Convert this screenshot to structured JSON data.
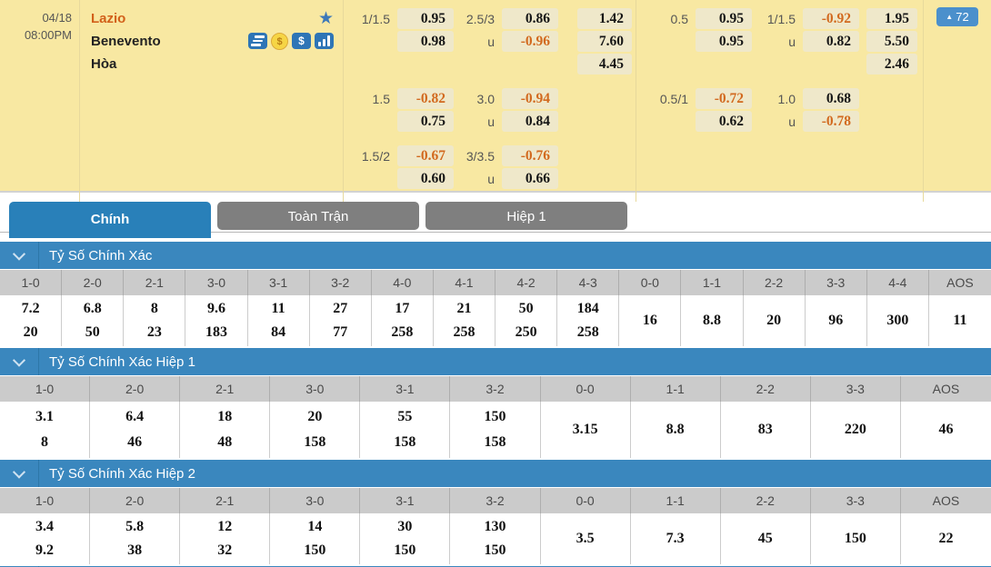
{
  "match": {
    "date": "04/18",
    "time": "08:00PM",
    "home": "Lazio",
    "away": "Benevento",
    "draw_label": "Hòa",
    "icons": [
      "stack-icon",
      "coin-icon",
      "dollar-icon",
      "stats-icon"
    ],
    "badge": {
      "arrow": "▲",
      "value": "72"
    }
  },
  "odds": {
    "left": {
      "blocks": [
        {
          "rows": [
            [
              "1/1.5",
              "0.95",
              "2.5/3",
              "0.86",
              "1.42"
            ],
            [
              "",
              "0.98",
              "u",
              "-0.96",
              "7.60"
            ],
            [
              null,
              null,
              null,
              null,
              "4.45"
            ]
          ]
        },
        {
          "rows": [
            [
              "1.5",
              "-0.82",
              "3.0",
              "-0.94",
              null
            ],
            [
              "",
              "0.75",
              "u",
              "0.84",
              null
            ]
          ]
        },
        {
          "rows": [
            [
              "1.5/2",
              "-0.67",
              "3/3.5",
              "-0.76",
              null
            ],
            [
              "",
              "0.60",
              "u",
              "0.66",
              null
            ]
          ]
        }
      ]
    },
    "right": {
      "blocks": [
        {
          "rows": [
            [
              "0.5",
              "0.95",
              "1/1.5",
              "-0.92",
              "1.95"
            ],
            [
              "",
              "0.95",
              "u",
              "0.82",
              "5.50"
            ],
            [
              null,
              null,
              null,
              null,
              "2.46"
            ]
          ]
        },
        {
          "rows": [
            [
              "0.5/1",
              "-0.72",
              "1.0",
              "0.68",
              null
            ],
            [
              "",
              "0.62",
              "u",
              "-0.78",
              null
            ]
          ]
        }
      ]
    }
  },
  "tabs": [
    {
      "label": "Chính",
      "active": true
    },
    {
      "label": "Toàn Trận",
      "active": false
    },
    {
      "label": "Hiệp 1",
      "active": false
    }
  ],
  "score_sections": [
    {
      "title": "Tỷ Số Chính Xác",
      "cells": [
        {
          "score": "1-0",
          "values": [
            "7.2",
            "20"
          ]
        },
        {
          "score": "2-0",
          "values": [
            "6.8",
            "50"
          ]
        },
        {
          "score": "2-1",
          "values": [
            "8",
            "23"
          ]
        },
        {
          "score": "3-0",
          "values": [
            "9.6",
            "183"
          ]
        },
        {
          "score": "3-1",
          "values": [
            "11",
            "84"
          ]
        },
        {
          "score": "3-2",
          "values": [
            "27",
            "77"
          ]
        },
        {
          "score": "4-0",
          "values": [
            "17",
            "258"
          ]
        },
        {
          "score": "4-1",
          "values": [
            "21",
            "258"
          ]
        },
        {
          "score": "4-2",
          "values": [
            "50",
            "250"
          ]
        },
        {
          "score": "4-3",
          "values": [
            "184",
            "258"
          ]
        },
        {
          "score": "0-0",
          "values": [
            "16"
          ]
        },
        {
          "score": "1-1",
          "values": [
            "8.8"
          ]
        },
        {
          "score": "2-2",
          "values": [
            "20"
          ]
        },
        {
          "score": "3-3",
          "values": [
            "96"
          ]
        },
        {
          "score": "4-4",
          "values": [
            "300"
          ]
        },
        {
          "score": "AOS",
          "values": [
            "11"
          ]
        }
      ]
    },
    {
      "title": "Tỷ Số Chính Xác Hiệp 1",
      "cells": [
        {
          "score": "1-0",
          "values": [
            "3.1",
            "8"
          ]
        },
        {
          "score": "2-0",
          "values": [
            "6.4",
            "46"
          ]
        },
        {
          "score": "2-1",
          "values": [
            "18",
            "48"
          ]
        },
        {
          "score": "3-0",
          "values": [
            "20",
            "158"
          ]
        },
        {
          "score": "3-1",
          "values": [
            "55",
            "158"
          ]
        },
        {
          "score": "3-2",
          "values": [
            "150",
            "158"
          ]
        },
        {
          "score": "0-0",
          "values": [
            "3.15"
          ]
        },
        {
          "score": "1-1",
          "values": [
            "8.8"
          ]
        },
        {
          "score": "2-2",
          "values": [
            "83"
          ]
        },
        {
          "score": "3-3",
          "values": [
            "220"
          ]
        },
        {
          "score": "AOS",
          "values": [
            "46"
          ]
        }
      ]
    },
    {
      "title": "Tỷ Số Chính Xác Hiệp 2",
      "cells": [
        {
          "score": "1-0",
          "values": [
            "3.4",
            "9.2"
          ]
        },
        {
          "score": "2-0",
          "values": [
            "5.8",
            "38"
          ]
        },
        {
          "score": "2-1",
          "values": [
            "12",
            "32"
          ]
        },
        {
          "score": "3-0",
          "values": [
            "14",
            "150"
          ]
        },
        {
          "score": "3-1",
          "values": [
            "30",
            "150"
          ]
        },
        {
          "score": "3-2",
          "values": [
            "130",
            "150"
          ]
        },
        {
          "score": "0-0",
          "values": [
            "3.5"
          ]
        },
        {
          "score": "1-1",
          "values": [
            "7.3"
          ]
        },
        {
          "score": "2-2",
          "values": [
            "45"
          ]
        },
        {
          "score": "3-3",
          "values": [
            "150"
          ]
        },
        {
          "score": "AOS",
          "values": [
            "22"
          ]
        }
      ]
    }
  ],
  "colors": {
    "panel_bg": "#F8E8A2",
    "chip_bg": "#EFE8CA",
    "negative_orange": "#D2691E",
    "home_team_orange": "#D2601A",
    "active_blue": "#2980B9",
    "section_blue": "#3A87BE",
    "inactive_gray": "#7F7F7F"
  }
}
